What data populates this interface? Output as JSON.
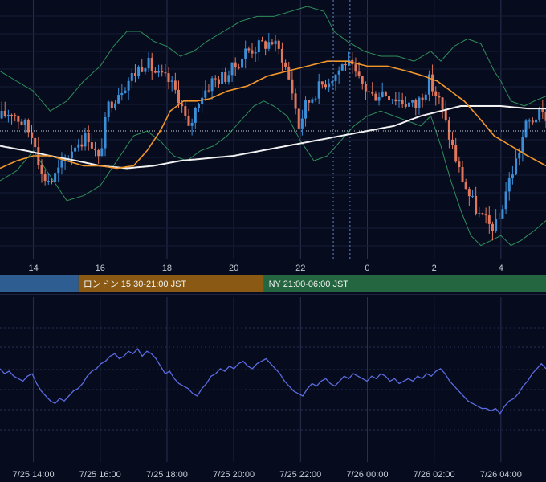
{
  "colors": {
    "background": "#060b1e",
    "grid": "#2a3050",
    "candle_up": "#3a8fd8",
    "candle_down": "#e2775c",
    "bollinger": "#2f8f5a",
    "ma_short": "#f0962c",
    "ma_long": "#f2f2f2",
    "oscillator": "#5b6be0",
    "session_tokyo": "#2e5d91",
    "session_london": "#8a5a14",
    "session_ny": "#23663f",
    "current_price_line": "#cfd3de",
    "date_marker": "#5f86c9"
  },
  "chart_data": [
    {
      "type": "candlestick",
      "grid": true,
      "x_tick_labels": [
        "14",
        "16",
        "18",
        "20",
        "22",
        "0",
        "2",
        "4"
      ],
      "x_range_hours": [
        13.0,
        29.35
      ],
      "y_range": [
        0,
        100
      ],
      "overlays": [
        "bollinger-bands",
        "moving-average-short",
        "moving-average-long",
        "current-price-line"
      ],
      "date_marker_hours": [
        22.98,
        23.48
      ],
      "current_price_level": 50,
      "sessions": [
        {
          "label": "",
          "start_hour": 13.0,
          "end_hour": 15.35
        },
        {
          "label": "ロンドン 15:30-21:00 JST",
          "start_hour": 15.35,
          "end_hour": 20.9
        },
        {
          "label": "NY 21:00-06:00 JST",
          "start_hour": 20.9,
          "end_hour": 29.35
        }
      ],
      "price_path": [
        [
          13.0,
          55
        ],
        [
          13.4,
          58
        ],
        [
          13.8,
          52
        ],
        [
          14.1,
          46
        ],
        [
          14.3,
          32
        ],
        [
          14.6,
          30
        ],
        [
          15.0,
          38
        ],
        [
          15.3,
          45
        ],
        [
          15.7,
          48
        ],
        [
          16.0,
          38
        ],
        [
          16.3,
          60
        ],
        [
          16.6,
          66
        ],
        [
          17.0,
          72
        ],
        [
          17.4,
          78
        ],
        [
          17.8,
          72
        ],
        [
          18.1,
          70
        ],
        [
          18.4,
          64
        ],
        [
          18.7,
          50
        ],
        [
          19.0,
          63
        ],
        [
          19.4,
          70
        ],
        [
          19.8,
          72
        ],
        [
          20.1,
          76
        ],
        [
          20.4,
          82
        ],
        [
          20.8,
          84
        ],
        [
          21.2,
          86
        ],
        [
          21.5,
          80
        ],
        [
          21.8,
          66
        ],
        [
          22.0,
          52
        ],
        [
          22.2,
          60
        ],
        [
          22.5,
          66
        ],
        [
          22.8,
          70
        ],
        [
          23.1,
          73
        ],
        [
          23.4,
          78
        ],
        [
          23.8,
          70
        ],
        [
          24.2,
          64
        ],
        [
          24.5,
          66
        ],
        [
          24.8,
          64
        ],
        [
          25.1,
          62
        ],
        [
          25.5,
          60
        ],
        [
          25.9,
          70
        ],
        [
          26.2,
          62
        ],
        [
          26.5,
          48
        ],
        [
          26.8,
          34
        ],
        [
          27.1,
          24
        ],
        [
          27.4,
          16
        ],
        [
          27.7,
          12
        ],
        [
          27.95,
          12
        ],
        [
          28.2,
          26
        ],
        [
          28.5,
          38
        ],
        [
          28.8,
          52
        ],
        [
          29.1,
          56
        ],
        [
          29.35,
          56
        ]
      ],
      "bollinger_upper_path": [
        [
          13.0,
          74
        ],
        [
          13.5,
          70
        ],
        [
          14.0,
          66
        ],
        [
          14.5,
          58
        ],
        [
          15.0,
          62
        ],
        [
          15.5,
          70
        ],
        [
          16.0,
          76
        ],
        [
          16.4,
          84
        ],
        [
          16.8,
          90
        ],
        [
          17.2,
          90
        ],
        [
          17.6,
          86
        ],
        [
          18.0,
          84
        ],
        [
          18.4,
          80
        ],
        [
          18.8,
          82
        ],
        [
          19.2,
          86
        ],
        [
          19.7,
          90
        ],
        [
          20.2,
          94
        ],
        [
          20.7,
          96
        ],
        [
          21.2,
          96
        ],
        [
          21.7,
          98
        ],
        [
          22.2,
          100
        ],
        [
          22.7,
          98
        ],
        [
          23.0,
          90
        ],
        [
          23.4,
          86
        ],
        [
          23.9,
          82
        ],
        [
          24.4,
          80
        ],
        [
          24.9,
          80
        ],
        [
          25.4,
          78
        ],
        [
          25.9,
          82
        ],
        [
          26.2,
          78
        ],
        [
          26.6,
          84
        ],
        [
          27.0,
          87
        ],
        [
          27.4,
          85
        ],
        [
          27.8,
          74
        ],
        [
          28.0,
          70
        ],
        [
          28.3,
          62
        ],
        [
          28.7,
          60
        ],
        [
          29.0,
          62
        ],
        [
          29.35,
          64
        ]
      ],
      "bollinger_lower_path": [
        [
          13.0,
          30
        ],
        [
          13.5,
          34
        ],
        [
          14.0,
          42
        ],
        [
          14.5,
          32
        ],
        [
          15.0,
          22
        ],
        [
          15.5,
          24
        ],
        [
          16.0,
          28
        ],
        [
          16.5,
          38
        ],
        [
          17.0,
          48
        ],
        [
          17.4,
          50
        ],
        [
          17.8,
          46
        ],
        [
          18.2,
          40
        ],
        [
          18.6,
          38
        ],
        [
          19.0,
          42
        ],
        [
          19.4,
          44
        ],
        [
          19.8,
          48
        ],
        [
          20.2,
          54
        ],
        [
          20.6,
          60
        ],
        [
          20.9,
          62
        ],
        [
          21.2,
          60
        ],
        [
          21.6,
          56
        ],
        [
          22.0,
          46
        ],
        [
          22.4,
          38
        ],
        [
          22.8,
          40
        ],
        [
          23.2,
          46
        ],
        [
          23.6,
          52
        ],
        [
          24.0,
          56
        ],
        [
          24.4,
          58
        ],
        [
          24.8,
          56
        ],
        [
          25.2,
          54
        ],
        [
          25.6,
          52
        ],
        [
          25.9,
          56
        ],
        [
          26.2,
          44
        ],
        [
          26.5,
          30
        ],
        [
          26.8,
          18
        ],
        [
          27.1,
          8
        ],
        [
          27.4,
          4
        ],
        [
          27.7,
          6
        ],
        [
          28.0,
          8
        ],
        [
          28.3,
          4
        ],
        [
          28.6,
          6
        ],
        [
          29.0,
          10
        ],
        [
          29.35,
          14
        ]
      ],
      "ma_short_path": [
        [
          13.0,
          35
        ],
        [
          13.5,
          38
        ],
        [
          14.0,
          40
        ],
        [
          14.5,
          40
        ],
        [
          15.0,
          38
        ],
        [
          15.5,
          36
        ],
        [
          16.0,
          36
        ],
        [
          16.5,
          35
        ],
        [
          17.0,
          36
        ],
        [
          17.4,
          42
        ],
        [
          17.8,
          50
        ],
        [
          18.1,
          58
        ],
        [
          18.5,
          62
        ],
        [
          18.9,
          62
        ],
        [
          19.3,
          63
        ],
        [
          19.8,
          66
        ],
        [
          20.4,
          68
        ],
        [
          21.0,
          72
        ],
        [
          21.6,
          74
        ],
        [
          22.2,
          76
        ],
        [
          22.8,
          78
        ],
        [
          23.4,
          78
        ],
        [
          24.0,
          76
        ],
        [
          24.6,
          76
        ],
        [
          25.2,
          74
        ],
        [
          25.7,
          72
        ],
        [
          26.1,
          70
        ],
        [
          26.5,
          66
        ],
        [
          26.9,
          62
        ],
        [
          27.3,
          56
        ],
        [
          27.8,
          48
        ],
        [
          28.3,
          44
        ],
        [
          28.8,
          40
        ],
        [
          29.35,
          36
        ]
      ],
      "ma_long_path": [
        [
          13.0,
          44
        ],
        [
          13.8,
          42
        ],
        [
          14.5,
          40
        ],
        [
          15.3,
          38
        ],
        [
          16.0,
          36
        ],
        [
          16.8,
          35
        ],
        [
          17.6,
          36
        ],
        [
          18.4,
          38
        ],
        [
          19.2,
          39
        ],
        [
          20.0,
          40
        ],
        [
          20.8,
          42
        ],
        [
          21.6,
          44
        ],
        [
          22.4,
          46
        ],
        [
          23.2,
          48
        ],
        [
          24.0,
          50
        ],
        [
          24.8,
          52
        ],
        [
          25.6,
          56
        ],
        [
          26.2,
          58
        ],
        [
          26.8,
          60
        ],
        [
          27.4,
          60
        ],
        [
          28.0,
          60
        ],
        [
          28.8,
          59
        ],
        [
          29.35,
          59
        ]
      ]
    },
    {
      "type": "line",
      "grid": true,
      "y_range": [
        0,
        100
      ],
      "x_tick_labels": [
        "7/25 14:00",
        "7/25 16:00",
        "7/25 18:00",
        "7/25 20:00",
        "7/25 22:00",
        "7/26 00:00",
        "7/26 02:00",
        "7/26 04:00"
      ],
      "x_range_hours": [
        13.0,
        29.35
      ],
      "values": [
        62,
        58,
        60,
        56,
        54,
        52,
        56,
        58,
        50,
        44,
        40,
        36,
        34,
        38,
        36,
        40,
        44,
        46,
        50,
        56,
        60,
        62,
        66,
        68,
        72,
        74,
        70,
        72,
        76,
        74,
        78,
        72,
        76,
        74,
        70,
        64,
        58,
        60,
        54,
        50,
        48,
        46,
        42,
        40,
        46,
        50,
        56,
        58,
        62,
        60,
        64,
        62,
        66,
        68,
        64,
        62,
        66,
        68,
        70,
        66,
        62,
        58,
        52,
        48,
        44,
        42,
        40,
        46,
        50,
        48,
        52,
        54,
        50,
        48,
        52,
        56,
        54,
        58,
        56,
        54,
        52,
        56,
        54,
        58,
        56,
        52,
        54,
        50,
        52,
        54,
        52,
        56,
        54,
        58,
        56,
        60,
        62,
        58,
        52,
        48,
        44,
        40,
        36,
        34,
        32,
        30,
        30,
        28,
        30,
        26,
        32,
        36,
        38,
        42,
        48,
        52,
        58,
        62,
        66,
        62
      ]
    }
  ]
}
